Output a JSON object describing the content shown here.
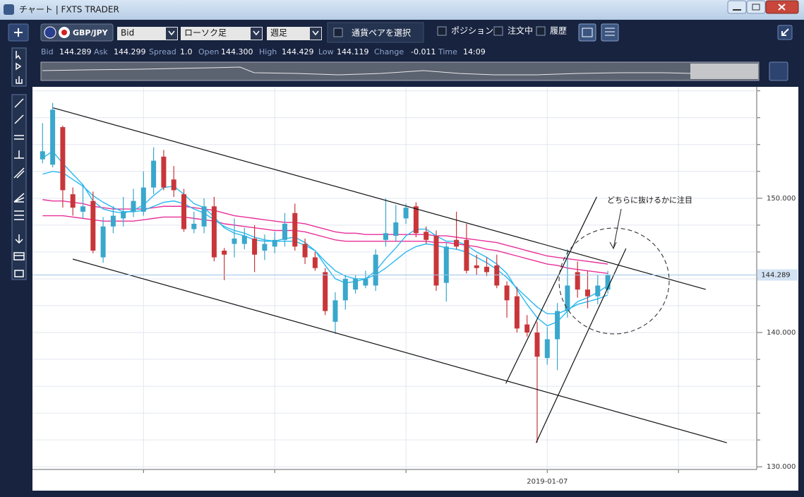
{
  "window": {
    "title": "チャート | FXTS TRADER"
  },
  "toolbar": {
    "symbol": "GBP/JPY",
    "price_type": "Bid",
    "chart_type": "ローソク足",
    "timeframe": "週足",
    "pair_select": "通貨ペアを選択",
    "checkboxes": [
      "ポジション",
      "注文中",
      "履歴"
    ]
  },
  "quote": {
    "items": [
      {
        "label": "Bid",
        "value": "144.289"
      },
      {
        "label": "Ask",
        "value": "144.299"
      },
      {
        "label": "Spread",
        "value": "1.0"
      },
      {
        "label": "Open",
        "value": "144.300"
      },
      {
        "label": "High",
        "value": "144.429"
      },
      {
        "label": "Low",
        "value": "144.119"
      },
      {
        "label": "Change",
        "value": "-0.011"
      },
      {
        "label": "Time",
        "value": "14:09"
      }
    ]
  },
  "chart_data": {
    "type": "candlestick",
    "up_color": "#3aa7cc",
    "down_color": "#c8363a",
    "open": [
      152.9,
      152.5,
      155.3,
      150.3,
      149.0,
      149.8,
      145.6,
      147.9,
      148.5,
      149.0,
      149.0,
      150.8,
      153.1,
      151.4,
      150.3,
      147.7,
      147.9,
      149.4,
      146.1,
      146.6,
      146.6,
      147.0,
      146.1,
      146.4,
      146.9,
      148.9,
      146.6,
      145.6,
      144.5,
      140.8,
      142.4,
      143.2,
      143.5,
      143.5,
      146.9,
      147.2,
      148.5,
      149.4,
      147.5,
      147.2,
      143.7,
      146.9,
      146.9,
      145.0,
      144.9,
      145.0,
      143.5,
      142.7,
      140.6,
      140.0,
      138.1,
      139.5,
      141.6,
      144.5,
      143.2,
      142.7,
      143.2
    ],
    "high": [
      155.6,
      157.1,
      155.4,
      150.8,
      151.0,
      150.5,
      148.6,
      149.4,
      150.1,
      150.7,
      152.0,
      153.8,
      153.6,
      152.4,
      150.7,
      149.0,
      150.0,
      150.1,
      146.3,
      148.5,
      147.8,
      148.0,
      147.3,
      147.5,
      148.9,
      149.6,
      147.0,
      146.0,
      144.8,
      143.0,
      144.3,
      144.3,
      144.6,
      146.2,
      150.0,
      149.5,
      149.6,
      149.7,
      147.9,
      147.6,
      146.7,
      149.0,
      148.1,
      145.8,
      145.6,
      145.8,
      143.8,
      143.4,
      141.3,
      140.8,
      140.4,
      142.2,
      146.2,
      145.3,
      144.6,
      144.3,
      144.6
    ],
    "low": [
      152.6,
      152.3,
      149.3,
      148.7,
      148.5,
      145.9,
      145.2,
      147.4,
      147.9,
      148.6,
      148.7,
      150.3,
      150.6,
      150.1,
      147.5,
      147.4,
      147.4,
      145.3,
      143.9,
      145.6,
      146.2,
      144.5,
      145.4,
      145.9,
      146.4,
      146.1,
      145.1,
      144.6,
      141.3,
      139.9,
      141.7,
      142.9,
      143.3,
      143.1,
      146.4,
      146.8,
      148.1,
      147.1,
      146.6,
      143.1,
      142.3,
      146.2,
      144.4,
      144.3,
      144.2,
      143.3,
      141.1,
      140.0,
      139.7,
      131.8,
      137.6,
      137.2,
      141.1,
      142.6,
      141.8,
      142.1,
      142.9
    ],
    "close": [
      153.5,
      156.6,
      150.6,
      149.3,
      149.4,
      146.1,
      147.9,
      148.7,
      149.0,
      149.8,
      150.8,
      152.8,
      150.8,
      150.6,
      147.7,
      148.1,
      149.4,
      145.6,
      145.8,
      147.0,
      147.2,
      145.8,
      146.6,
      146.9,
      148.1,
      146.4,
      145.6,
      144.8,
      141.6,
      142.4,
      144.0,
      144.0,
      144.0,
      145.8,
      147.4,
      148.2,
      149.3,
      147.4,
      146.9,
      143.5,
      146.4,
      146.4,
      144.6,
      144.8,
      144.5,
      143.5,
      142.4,
      140.3,
      140.0,
      138.2,
      139.5,
      141.6,
      143.5,
      143.2,
      142.7,
      143.5,
      144.3
    ],
    "series": [
      {
        "color": "#e8309a",
        "values": [
          149.9,
          149.8,
          149.8,
          149.7,
          149.6,
          149.4,
          149.3,
          149.2,
          149.2,
          149.2,
          149.2,
          149.3,
          149.4,
          149.4,
          149.4,
          149.3,
          149.2,
          149.1,
          148.9,
          148.7,
          148.6,
          148.5,
          148.4,
          148.3,
          148.2,
          148.2,
          148.1,
          147.9,
          147.7,
          147.5,
          147.4,
          147.4,
          147.3,
          147.3,
          147.3,
          147.3,
          147.3,
          147.3,
          147.3,
          147.2,
          147.2,
          147.1,
          147.0,
          146.9,
          146.8,
          146.7,
          146.5,
          146.3,
          146.1,
          145.9,
          145.7,
          145.6,
          145.5,
          145.4,
          145.3,
          145.2,
          145.1
        ]
      },
      {
        "color": "#e8309a",
        "values": [
          148.7,
          148.7,
          148.7,
          148.6,
          148.5,
          148.4,
          148.3,
          148.3,
          148.3,
          148.3,
          148.4,
          148.5,
          148.6,
          148.6,
          148.6,
          148.5,
          148.4,
          148.3,
          148.1,
          148.0,
          147.9,
          147.8,
          147.7,
          147.6,
          147.6,
          147.6,
          147.5,
          147.3,
          147.1,
          146.9,
          146.8,
          146.8,
          146.8,
          146.8,
          146.8,
          146.8,
          146.8,
          146.8,
          146.8,
          146.7,
          146.7,
          146.6,
          146.5,
          146.4,
          146.2,
          146.1,
          145.9,
          145.7,
          145.5,
          145.3,
          145.1,
          145.0,
          144.8,
          144.7,
          144.6,
          144.5,
          144.4
        ]
      },
      {
        "color": "#29b8f0",
        "values": [
          153.0,
          153.5,
          152.6,
          151.8,
          151.0,
          149.8,
          149.2,
          149.0,
          148.9,
          149.1,
          149.5,
          150.2,
          150.8,
          150.9,
          150.3,
          149.6,
          149.3,
          148.6,
          147.8,
          147.4,
          147.2,
          146.9,
          146.8,
          146.8,
          147.0,
          147.1,
          146.7,
          146.1,
          145.0,
          144.0,
          143.7,
          143.8,
          144.0,
          144.6,
          145.5,
          146.3,
          147.2,
          147.7,
          147.7,
          147.2,
          146.8,
          146.8,
          146.5,
          146.0,
          145.6,
          145.1,
          144.4,
          143.2,
          142.1,
          141.1,
          140.5,
          140.8,
          141.6,
          142.3,
          142.6,
          143.0,
          143.5
        ]
      },
      {
        "color": "#29b8f0",
        "values": [
          151.8,
          152.0,
          151.9,
          151.4,
          150.9,
          150.2,
          149.7,
          149.3,
          149.0,
          149.0,
          149.1,
          149.4,
          149.7,
          149.8,
          149.6,
          149.2,
          148.9,
          148.4,
          147.9,
          147.6,
          147.4,
          147.1,
          146.9,
          146.8,
          146.8,
          146.8,
          146.5,
          146.1,
          145.3,
          144.6,
          144.2,
          144.0,
          144.0,
          144.3,
          144.8,
          145.4,
          146.0,
          146.4,
          146.6,
          146.5,
          146.3,
          146.2,
          146.0,
          145.6,
          145.2,
          144.7,
          144.1,
          143.3,
          142.6,
          141.9,
          141.4,
          141.4,
          141.7,
          142.1,
          142.3,
          142.5,
          142.8
        ]
      }
    ],
    "trendlines": [
      {
        "x": [
          1.03,
          65.7
        ],
        "y": [
          156.74,
          143.21
        ]
      },
      {
        "x": [
          2.99,
          67.8
        ],
        "y": [
          145.47,
          131.79
        ]
      },
      {
        "x": [
          45.9,
          54.9
        ],
        "y": [
          136.21,
          150.1
        ]
      },
      {
        "x": [
          48.9,
          57.8
        ],
        "y": [
          131.79,
          146.26
        ]
      }
    ],
    "annotation": "どちらに抜けるかに注目",
    "last_price": 144.289,
    "xlim": [
      -1,
      70.75
    ],
    "xticks": [
      {
        "value": 50,
        "label": "2019-01-07"
      }
    ],
    "minor_xticks": [
      10,
      23,
      36,
      63
    ],
    "ylim": [
      129.8,
      158.3
    ],
    "yticks": [
      {
        "value": 150,
        "label": "150.000"
      },
      {
        "value": 140,
        "label": "140.000"
      },
      {
        "value": 130,
        "label": "130.000"
      }
    ],
    "minor_yticks": [
      132,
      134,
      136,
      138,
      142,
      144,
      146,
      148,
      152,
      154,
      156,
      158
    ],
    "grid": true
  }
}
